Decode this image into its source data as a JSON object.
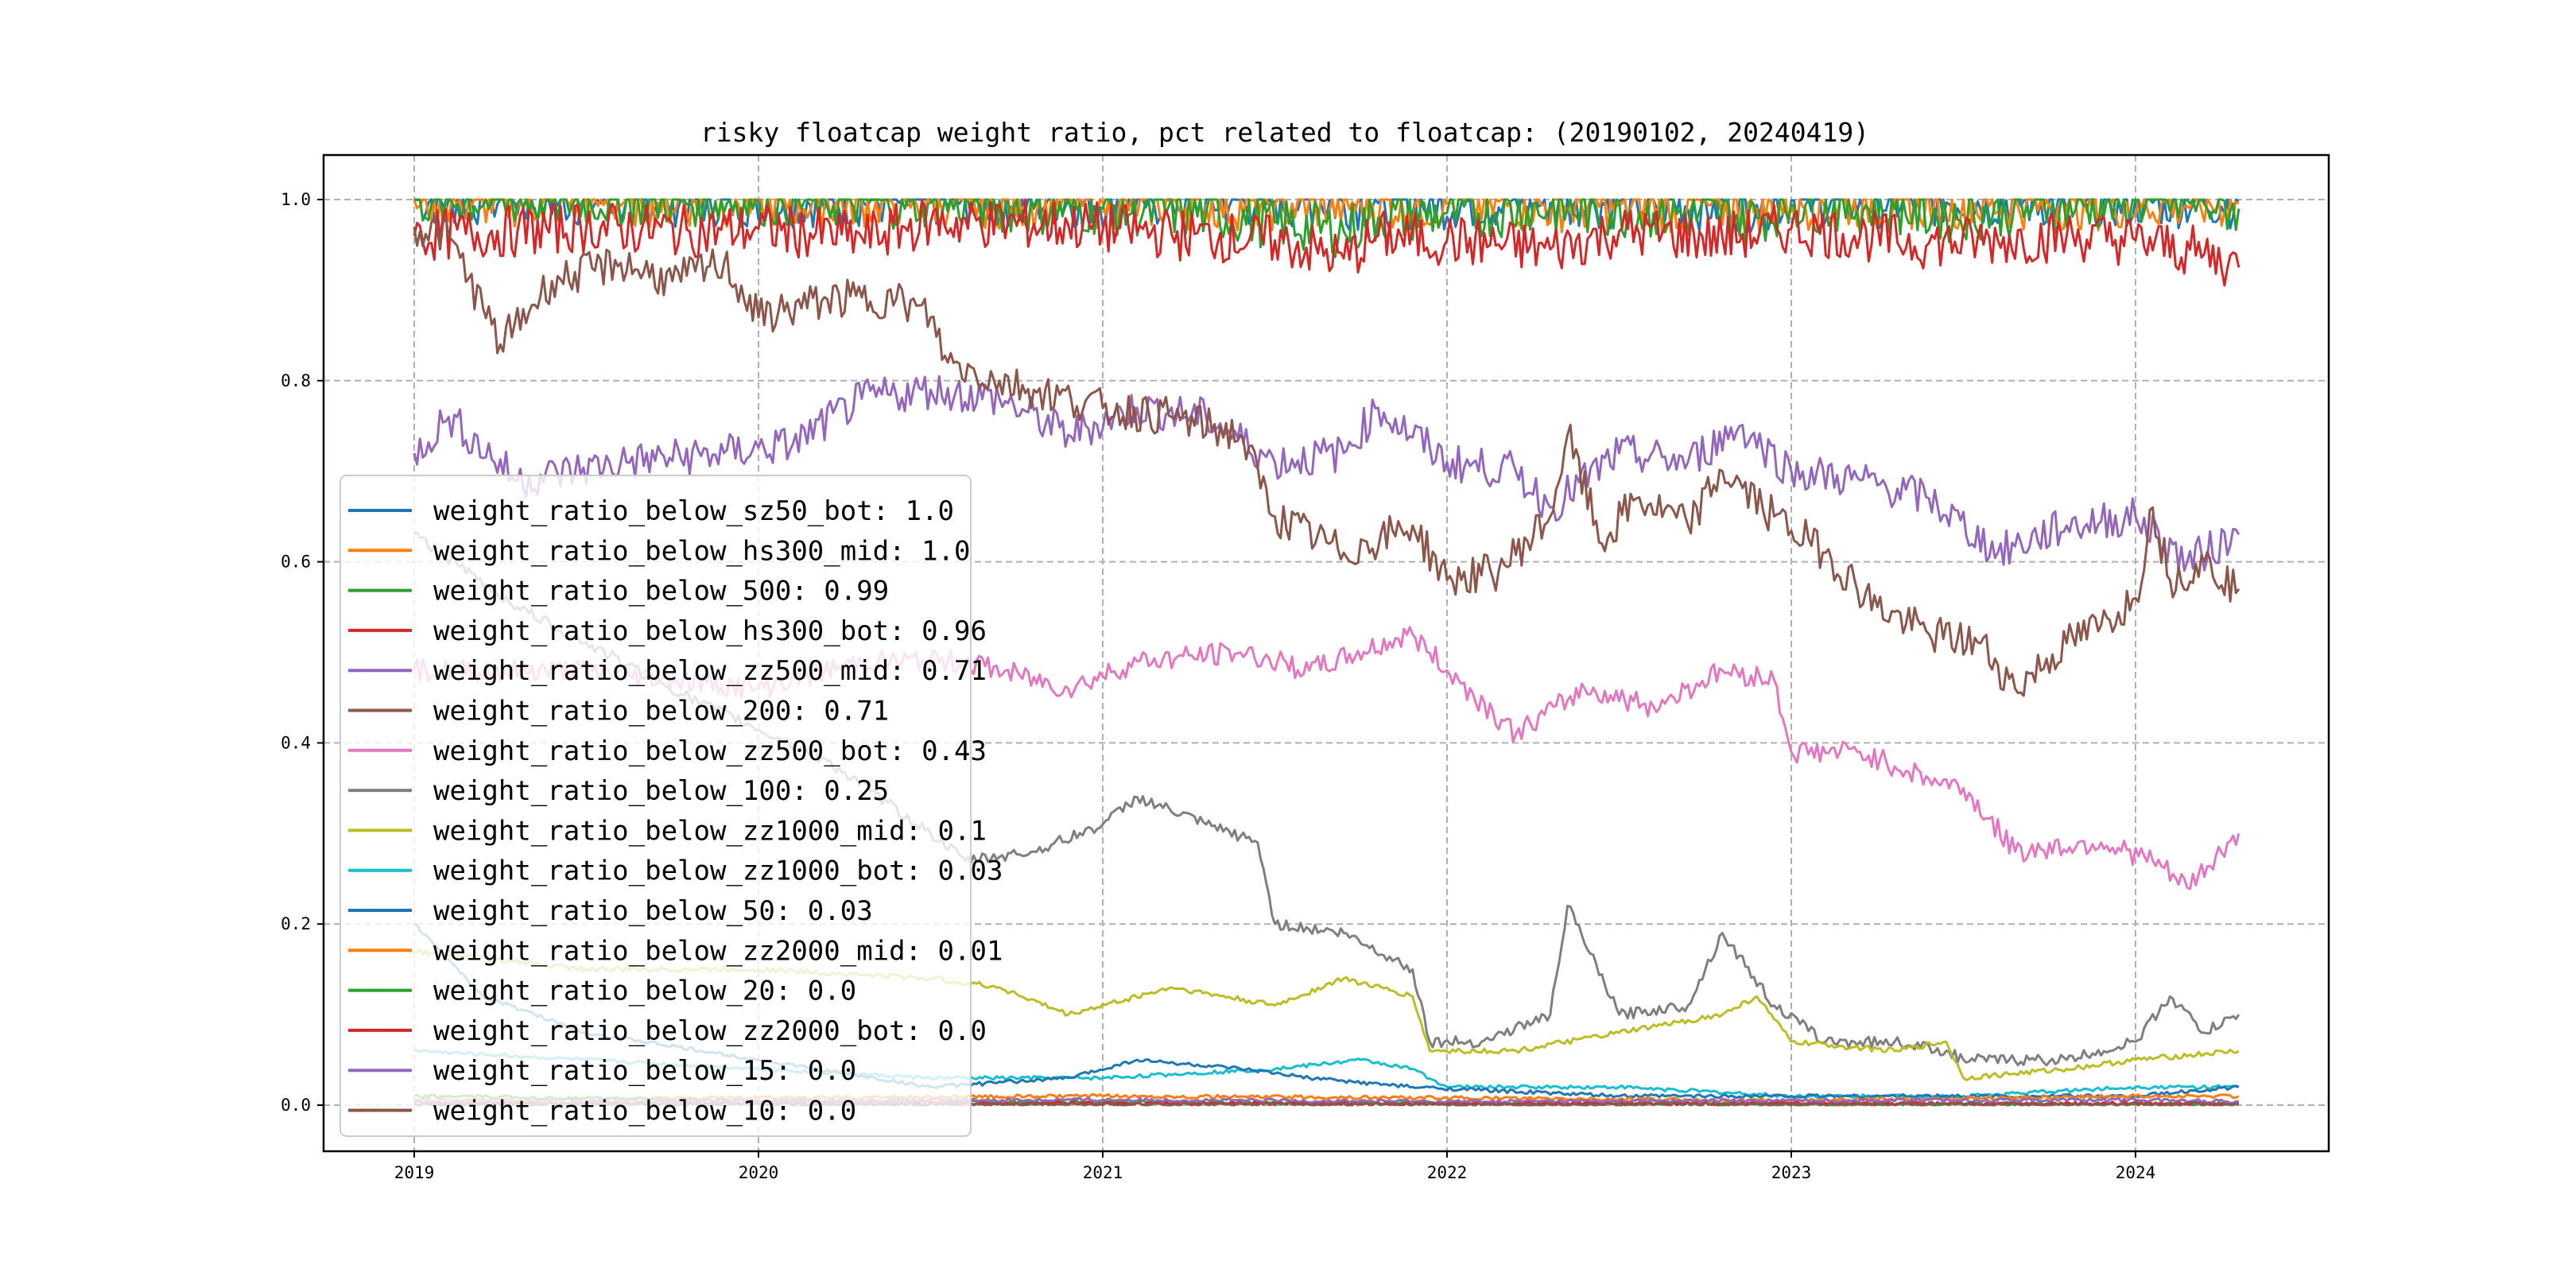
{
  "chart_data": {
    "type": "line",
    "title": "risky floatcap weight ratio, pct related to floatcap: (20190102, 20240419)",
    "xlabel": "",
    "ylabel": "",
    "xlim": [
      2018.78,
      2024.59
    ],
    "ylim": [
      -0.05,
      1.05
    ],
    "grid": true,
    "legend_position": "lower-left",
    "x_ticks": [
      {
        "v": 2019,
        "label": "2019"
      },
      {
        "v": 2020,
        "label": "2020"
      },
      {
        "v": 2021,
        "label": "2021"
      },
      {
        "v": 2022,
        "label": "2022"
      },
      {
        "v": 2023,
        "label": "2023"
      },
      {
        "v": 2024,
        "label": "2024"
      }
    ],
    "y_ticks": [
      {
        "v": 0.0,
        "label": "0.0"
      },
      {
        "v": 0.2,
        "label": "0.2"
      },
      {
        "v": 0.4,
        "label": "0.4"
      },
      {
        "v": 0.6,
        "label": "0.6"
      },
      {
        "v": 0.8,
        "label": "0.8"
      },
      {
        "v": 1.0,
        "label": "1.0"
      }
    ],
    "series": [
      {
        "name": "weight_ratio_below_sz50_bot: 1.0",
        "color": "#1f77b4",
        "points": [
          [
            2019.0,
            1.0
          ],
          [
            2021.5,
            0.998
          ],
          [
            2021.8,
            0.996
          ],
          [
            2022.5,
            0.997
          ],
          [
            2022.9,
            0.994
          ],
          [
            2023.0,
            0.999
          ],
          [
            2024.3,
            0.998
          ]
        ]
      },
      {
        "name": "weight_ratio_below_hs300_mid: 1.0",
        "color": "#ff7f0e",
        "points": [
          [
            2019.0,
            0.999
          ],
          [
            2020.5,
            0.998
          ],
          [
            2021.0,
            0.997
          ],
          [
            2021.5,
            0.995
          ],
          [
            2022.0,
            0.995
          ],
          [
            2022.5,
            0.993
          ],
          [
            2022.9,
            0.99
          ],
          [
            2023.0,
            0.996
          ],
          [
            2024.3,
            0.996
          ]
        ]
      },
      {
        "name": "weight_ratio_below_500: 0.99",
        "color": "#2ca02c",
        "points": [
          [
            2019.0,
            1.0
          ],
          [
            2020.0,
            0.999
          ],
          [
            2020.5,
            0.997
          ],
          [
            2020.8,
            0.99
          ],
          [
            2021.0,
            0.99
          ],
          [
            2021.3,
            0.985
          ],
          [
            2021.5,
            0.975
          ],
          [
            2021.7,
            0.965
          ],
          [
            2021.8,
            0.98
          ],
          [
            2022.0,
            0.985
          ],
          [
            2022.3,
            0.99
          ],
          [
            2022.6,
            0.985
          ],
          [
            2022.9,
            0.98
          ],
          [
            2023.0,
            0.995
          ],
          [
            2023.3,
            0.99
          ],
          [
            2023.45,
            0.982
          ],
          [
            2023.7,
            0.99
          ],
          [
            2024.0,
            0.998
          ],
          [
            2024.2,
            0.995
          ],
          [
            2024.3,
            0.99
          ]
        ]
      },
      {
        "name": "weight_ratio_below_hs300_bot: 0.96",
        "color": "#d62728",
        "points": [
          [
            2019.0,
            0.96
          ],
          [
            2019.3,
            0.965
          ],
          [
            2019.5,
            0.97
          ],
          [
            2019.8,
            0.965
          ],
          [
            2020.0,
            0.968
          ],
          [
            2020.3,
            0.958
          ],
          [
            2020.5,
            0.975
          ],
          [
            2020.9,
            0.972
          ],
          [
            2021.2,
            0.962
          ],
          [
            2021.5,
            0.955
          ],
          [
            2021.7,
            0.935
          ],
          [
            2021.8,
            0.96
          ],
          [
            2022.0,
            0.955
          ],
          [
            2022.3,
            0.945
          ],
          [
            2022.5,
            0.965
          ],
          [
            2022.8,
            0.958
          ],
          [
            2023.0,
            0.968
          ],
          [
            2023.2,
            0.96
          ],
          [
            2023.4,
            0.952
          ],
          [
            2023.6,
            0.955
          ],
          [
            2023.8,
            0.96
          ],
          [
            2024.0,
            0.955
          ],
          [
            2024.2,
            0.94
          ],
          [
            2024.3,
            0.925
          ]
        ]
      },
      {
        "name": "weight_ratio_below_zz500_mid: 0.71",
        "color": "#9467bd",
        "points": [
          [
            2019.0,
            0.72
          ],
          [
            2019.1,
            0.76
          ],
          [
            2019.3,
            0.69
          ],
          [
            2019.6,
            0.71
          ],
          [
            2019.9,
            0.72
          ],
          [
            2020.1,
            0.73
          ],
          [
            2020.3,
            0.78
          ],
          [
            2020.5,
            0.79
          ],
          [
            2020.7,
            0.78
          ],
          [
            2020.9,
            0.74
          ],
          [
            2021.1,
            0.77
          ],
          [
            2021.3,
            0.76
          ],
          [
            2021.5,
            0.71
          ],
          [
            2021.7,
            0.72
          ],
          [
            2021.8,
            0.77
          ],
          [
            2022.0,
            0.71
          ],
          [
            2022.2,
            0.7
          ],
          [
            2022.3,
            0.66
          ],
          [
            2022.5,
            0.72
          ],
          [
            2022.7,
            0.71
          ],
          [
            2022.85,
            0.75
          ],
          [
            2023.0,
            0.7
          ],
          [
            2023.2,
            0.69
          ],
          [
            2023.4,
            0.67
          ],
          [
            2023.6,
            0.61
          ],
          [
            2023.8,
            0.64
          ],
          [
            2024.0,
            0.65
          ],
          [
            2024.15,
            0.6
          ],
          [
            2024.3,
            0.63
          ]
        ]
      },
      {
        "name": "weight_ratio_below_200: 0.71",
        "color": "#8c564b",
        "points": [
          [
            2019.0,
            0.97
          ],
          [
            2019.1,
            0.96
          ],
          [
            2019.2,
            0.88
          ],
          [
            2019.25,
            0.84
          ],
          [
            2019.4,
            0.91
          ],
          [
            2019.6,
            0.93
          ],
          [
            2019.75,
            0.91
          ],
          [
            2019.9,
            0.93
          ],
          [
            2020.0,
            0.87
          ],
          [
            2020.2,
            0.89
          ],
          [
            2020.4,
            0.89
          ],
          [
            2020.5,
            0.87
          ],
          [
            2020.55,
            0.82
          ],
          [
            2020.7,
            0.8
          ],
          [
            2020.8,
            0.79
          ],
          [
            2021.0,
            0.77
          ],
          [
            2021.2,
            0.76
          ],
          [
            2021.4,
            0.74
          ],
          [
            2021.5,
            0.65
          ],
          [
            2021.7,
            0.61
          ],
          [
            2021.9,
            0.64
          ],
          [
            2022.0,
            0.58
          ],
          [
            2022.15,
            0.59
          ],
          [
            2022.3,
            0.65
          ],
          [
            2022.35,
            0.74
          ],
          [
            2022.45,
            0.62
          ],
          [
            2022.55,
            0.67
          ],
          [
            2022.7,
            0.64
          ],
          [
            2022.8,
            0.7
          ],
          [
            2022.95,
            0.65
          ],
          [
            2023.1,
            0.61
          ],
          [
            2023.25,
            0.55
          ],
          [
            2023.4,
            0.52
          ],
          [
            2023.55,
            0.51
          ],
          [
            2023.65,
            0.46
          ],
          [
            2023.8,
            0.51
          ],
          [
            2023.9,
            0.53
          ],
          [
            2024.0,
            0.56
          ],
          [
            2024.05,
            0.66
          ],
          [
            2024.1,
            0.58
          ],
          [
            2024.2,
            0.6
          ],
          [
            2024.3,
            0.57
          ]
        ]
      },
      {
        "name": "weight_ratio_below_zz500_bot: 0.43",
        "color": "#e377c2",
        "points": [
          [
            2019.0,
            0.48
          ],
          [
            2019.5,
            0.48
          ],
          [
            2020.0,
            0.46
          ],
          [
            2020.3,
            0.49
          ],
          [
            2020.6,
            0.49
          ],
          [
            2020.9,
            0.46
          ],
          [
            2021.1,
            0.49
          ],
          [
            2021.4,
            0.5
          ],
          [
            2021.6,
            0.48
          ],
          [
            2021.9,
            0.52
          ],
          [
            2022.0,
            0.48
          ],
          [
            2022.2,
            0.41
          ],
          [
            2022.4,
            0.46
          ],
          [
            2022.6,
            0.44
          ],
          [
            2022.8,
            0.48
          ],
          [
            2022.95,
            0.47
          ],
          [
            2023.0,
            0.39
          ],
          [
            2023.2,
            0.39
          ],
          [
            2023.4,
            0.36
          ],
          [
            2023.5,
            0.35
          ],
          [
            2023.65,
            0.28
          ],
          [
            2023.9,
            0.29
          ],
          [
            2024.05,
            0.27
          ],
          [
            2024.15,
            0.24
          ],
          [
            2024.3,
            0.3
          ]
        ]
      },
      {
        "name": "weight_ratio_below_100: 0.25",
        "color": "#7f7f7f",
        "points": [
          [
            2019.0,
            0.63
          ],
          [
            2019.3,
            0.55
          ],
          [
            2019.8,
            0.45
          ],
          [
            2020.2,
            0.38
          ],
          [
            2020.5,
            0.3
          ],
          [
            2020.6,
            0.27
          ],
          [
            2020.8,
            0.28
          ],
          [
            2021.0,
            0.31
          ],
          [
            2021.1,
            0.34
          ],
          [
            2021.3,
            0.31
          ],
          [
            2021.45,
            0.29
          ],
          [
            2021.5,
            0.2
          ],
          [
            2021.7,
            0.19
          ],
          [
            2021.9,
            0.15
          ],
          [
            2021.95,
            0.07
          ],
          [
            2022.1,
            0.07
          ],
          [
            2022.3,
            0.1
          ],
          [
            2022.35,
            0.22
          ],
          [
            2022.5,
            0.1
          ],
          [
            2022.7,
            0.11
          ],
          [
            2022.8,
            0.19
          ],
          [
            2022.95,
            0.11
          ],
          [
            2023.1,
            0.07
          ],
          [
            2023.3,
            0.07
          ],
          [
            2023.45,
            0.06
          ],
          [
            2023.5,
            0.05
          ],
          [
            2023.8,
            0.05
          ],
          [
            2024.0,
            0.07
          ],
          [
            2024.1,
            0.12
          ],
          [
            2024.2,
            0.08
          ],
          [
            2024.3,
            0.1
          ]
        ]
      },
      {
        "name": "weight_ratio_below_zz1000_mid: 0.1",
        "color": "#bcbd22",
        "points": [
          [
            2019.0,
            0.17
          ],
          [
            2019.5,
            0.15
          ],
          [
            2020.0,
            0.15
          ],
          [
            2020.5,
            0.14
          ],
          [
            2020.7,
            0.13
          ],
          [
            2020.9,
            0.1
          ],
          [
            2021.2,
            0.13
          ],
          [
            2021.5,
            0.11
          ],
          [
            2021.7,
            0.14
          ],
          [
            2021.9,
            0.12
          ],
          [
            2021.95,
            0.06
          ],
          [
            2022.2,
            0.06
          ],
          [
            2022.5,
            0.08
          ],
          [
            2022.8,
            0.1
          ],
          [
            2022.9,
            0.12
          ],
          [
            2023.0,
            0.07
          ],
          [
            2023.3,
            0.06
          ],
          [
            2023.45,
            0.07
          ],
          [
            2023.5,
            0.03
          ],
          [
            2023.8,
            0.04
          ],
          [
            2024.0,
            0.05
          ],
          [
            2024.3,
            0.06
          ]
        ]
      },
      {
        "name": "weight_ratio_below_zz1000_bot: 0.03",
        "color": "#17becf",
        "points": [
          [
            2019.0,
            0.06
          ],
          [
            2019.5,
            0.05
          ],
          [
            2020.0,
            0.04
          ],
          [
            2020.5,
            0.03
          ],
          [
            2021.0,
            0.03
          ],
          [
            2021.5,
            0.04
          ],
          [
            2021.75,
            0.05
          ],
          [
            2021.9,
            0.04
          ],
          [
            2022.0,
            0.02
          ],
          [
            2022.5,
            0.02
          ],
          [
            2023.0,
            0.01
          ],
          [
            2023.5,
            0.01
          ],
          [
            2024.0,
            0.02
          ],
          [
            2024.3,
            0.02
          ]
        ]
      },
      {
        "name": "weight_ratio_below_50: 0.03",
        "color": "#1f77b4",
        "points": [
          [
            2019.0,
            0.2
          ],
          [
            2019.2,
            0.12
          ],
          [
            2019.5,
            0.08
          ],
          [
            2020.0,
            0.05
          ],
          [
            2020.5,
            0.02
          ],
          [
            2020.9,
            0.03
          ],
          [
            2021.1,
            0.05
          ],
          [
            2021.4,
            0.04
          ],
          [
            2021.6,
            0.03
          ],
          [
            2021.9,
            0.02
          ],
          [
            2022.5,
            0.01
          ],
          [
            2023.0,
            0.01
          ],
          [
            2024.0,
            0.01
          ],
          [
            2024.3,
            0.02
          ]
        ]
      },
      {
        "name": "weight_ratio_below_zz2000_mid: 0.01",
        "color": "#ff7f0e",
        "points": [
          [
            2019.0,
            0.005
          ],
          [
            2020.0,
            0.008
          ],
          [
            2021.0,
            0.01
          ],
          [
            2022.0,
            0.008
          ],
          [
            2023.0,
            0.005
          ],
          [
            2024.0,
            0.01
          ],
          [
            2024.3,
            0.01
          ]
        ]
      },
      {
        "name": "weight_ratio_below_20: 0.0",
        "color": "#2ca02c",
        "points": [
          [
            2019.0,
            0.01
          ],
          [
            2020.0,
            0.005
          ],
          [
            2021.0,
            0.003
          ],
          [
            2022.0,
            0.002
          ],
          [
            2023.0,
            0.001
          ],
          [
            2024.3,
            0.001
          ]
        ]
      },
      {
        "name": "weight_ratio_below_zz2000_bot: 0.0",
        "color": "#d62728",
        "points": [
          [
            2019.0,
            0.002
          ],
          [
            2024.3,
            0.002
          ]
        ]
      },
      {
        "name": "weight_ratio_below_15: 0.0",
        "color": "#9467bd",
        "points": [
          [
            2019.0,
            0.003
          ],
          [
            2021.0,
            0.006
          ],
          [
            2022.0,
            0.004
          ],
          [
            2024.0,
            0.006
          ],
          [
            2024.3,
            0.004
          ]
        ]
      },
      {
        "name": "weight_ratio_below_10: 0.0",
        "color": "#8c564b",
        "points": [
          [
            2019.0,
            0.001
          ],
          [
            2024.3,
            0.001
          ]
        ]
      }
    ]
  }
}
